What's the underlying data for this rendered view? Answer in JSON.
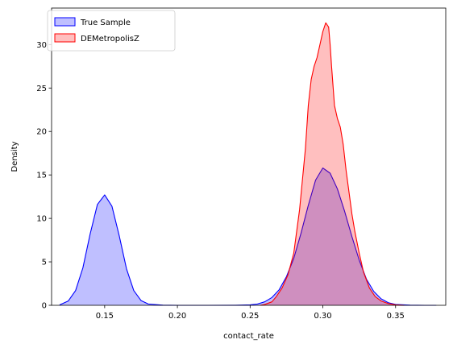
{
  "chart_data": {
    "type": "area",
    "xlabel": "contact_rate",
    "ylabel": "Density",
    "xlim": [
      0.1135,
      0.3845
    ],
    "ylim": [
      0,
      34.2
    ],
    "xticks": [
      0.15,
      0.2,
      0.25,
      0.3,
      0.35
    ],
    "xtick_labels": [
      "0.15",
      "0.20",
      "0.25",
      "0.30",
      "0.35"
    ],
    "yticks": [
      0,
      5,
      10,
      15,
      20,
      25,
      30
    ],
    "ytick_labels": [
      "0",
      "5",
      "10",
      "15",
      "20",
      "25",
      "30"
    ],
    "grid": false,
    "legend_position": "top-left",
    "series": [
      {
        "name": "True Sample",
        "color": "#0000ff",
        "fill": "#0000ff",
        "fill_opacity": 0.25,
        "x": [
          0.119,
          0.125,
          0.13,
          0.135,
          0.14,
          0.145,
          0.15,
          0.155,
          0.16,
          0.165,
          0.17,
          0.175,
          0.18,
          0.19,
          0.2,
          0.22,
          0.24,
          0.25,
          0.255,
          0.26,
          0.265,
          0.27,
          0.275,
          0.28,
          0.285,
          0.29,
          0.295,
          0.3,
          0.305,
          0.31,
          0.315,
          0.32,
          0.325,
          0.33,
          0.335,
          0.34,
          0.345,
          0.35,
          0.36,
          0.37,
          0.378
        ],
        "y": [
          0.05,
          0.5,
          1.7,
          4.3,
          8.2,
          11.6,
          12.7,
          11.4,
          8.0,
          4.2,
          1.7,
          0.55,
          0.15,
          0.02,
          0.0,
          0.0,
          0.01,
          0.05,
          0.15,
          0.4,
          0.9,
          1.8,
          3.3,
          5.4,
          8.3,
          11.5,
          14.4,
          15.8,
          15.2,
          13.4,
          10.8,
          7.9,
          5.2,
          3.0,
          1.6,
          0.75,
          0.3,
          0.1,
          0.02,
          0.0,
          0.0
        ]
      },
      {
        "name": "DEMetropolisZ",
        "color": "#ff0000",
        "fill": "#ff0000",
        "fill_opacity": 0.25,
        "x": [
          0.257,
          0.26,
          0.265,
          0.268,
          0.272,
          0.276,
          0.28,
          0.284,
          0.288,
          0.29,
          0.292,
          0.294,
          0.296,
          0.298,
          0.3,
          0.302,
          0.304,
          0.305,
          0.306,
          0.308,
          0.31,
          0.312,
          0.314,
          0.316,
          0.318,
          0.32,
          0.322,
          0.325,
          0.328,
          0.332,
          0.336,
          0.34,
          0.345,
          0.35,
          0.356
        ],
        "y": [
          0.0,
          0.1,
          0.4,
          1.0,
          2.0,
          3.5,
          6.0,
          11.0,
          18.0,
          23.0,
          26.0,
          27.5,
          28.5,
          30.0,
          31.5,
          32.5,
          32.0,
          30.0,
          27.5,
          23.0,
          21.5,
          20.5,
          18.5,
          15.5,
          13.0,
          10.5,
          8.5,
          6.0,
          3.8,
          2.0,
          1.0,
          0.5,
          0.2,
          0.05,
          0.0
        ]
      }
    ]
  }
}
